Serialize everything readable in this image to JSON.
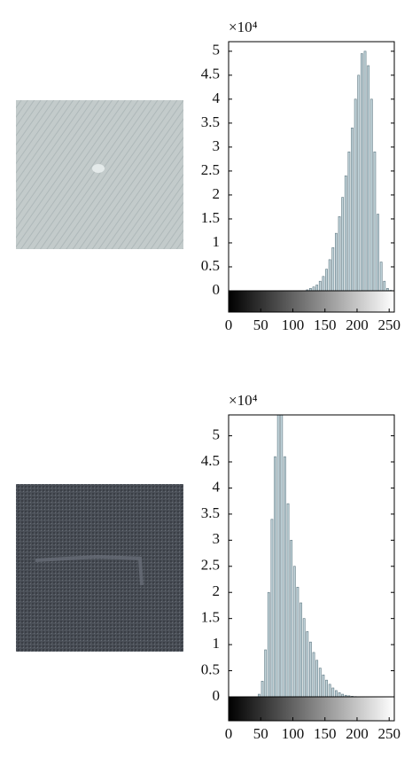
{
  "chart_data": [
    {
      "type": "histogram",
      "y_multiplier": "×10⁴",
      "color": "#c4d6dc",
      "edge_color": "#5d7680",
      "bins": [
        0,
        5,
        10,
        15,
        20,
        25,
        30,
        35,
        40,
        45,
        50,
        55,
        60,
        65,
        70,
        75,
        80,
        85,
        90,
        95,
        100,
        105,
        110,
        115,
        120,
        125,
        130,
        135,
        140,
        145,
        150,
        155,
        160,
        165,
        170,
        175,
        180,
        185,
        190,
        195,
        200,
        205,
        210,
        215,
        220,
        225,
        230,
        235,
        240,
        245,
        250,
        255
      ],
      "values": [
        0,
        0,
        0,
        0,
        0,
        0,
        0,
        0,
        0,
        0,
        0,
        0,
        0,
        0,
        0,
        0,
        0,
        0,
        0,
        0,
        0,
        0,
        0,
        0,
        0.02,
        0.05,
        0.08,
        0.12,
        0.2,
        0.3,
        0.45,
        0.65,
        0.9,
        1.2,
        1.55,
        1.95,
        2.4,
        2.9,
        3.4,
        4.0,
        4.5,
        4.95,
        5.0,
        4.7,
        4.0,
        2.9,
        1.6,
        0.6,
        0.2,
        0.05,
        0.01
      ],
      "xlim": [
        0,
        258
      ],
      "ylim": [
        0,
        5.2
      ],
      "xticks": [
        0,
        50,
        100,
        150,
        200,
        250
      ],
      "yticks": [
        0,
        0.5,
        1,
        1.5,
        2,
        2.5,
        3,
        3.5,
        4,
        4.5,
        5
      ]
    },
    {
      "type": "histogram",
      "y_multiplier": "×10⁴",
      "color": "#c4d6dc",
      "edge_color": "#5d7680",
      "bins": [
        0,
        5,
        10,
        15,
        20,
        25,
        30,
        35,
        40,
        45,
        50,
        55,
        60,
        65,
        70,
        75,
        80,
        85,
        90,
        95,
        100,
        105,
        110,
        115,
        120,
        125,
        130,
        135,
        140,
        145,
        150,
        155,
        160,
        165,
        170,
        175,
        180,
        185,
        190,
        195,
        200,
        205,
        210,
        215,
        220,
        225,
        230,
        235,
        240,
        245,
        250,
        255
      ],
      "values": [
        0,
        0,
        0,
        0,
        0,
        0,
        0,
        0,
        0,
        0.05,
        0.3,
        0.9,
        2.0,
        3.4,
        4.6,
        5.5,
        5.5,
        4.6,
        3.7,
        3.0,
        2.5,
        2.1,
        1.8,
        1.5,
        1.25,
        1.05,
        0.85,
        0.7,
        0.55,
        0.42,
        0.32,
        0.24,
        0.17,
        0.12,
        0.08,
        0.05,
        0.03,
        0.02,
        0.01,
        0.005,
        0,
        0,
        0,
        0,
        0,
        0,
        0,
        0,
        0,
        0,
        0
      ],
      "xlim": [
        0,
        258
      ],
      "ylim": [
        0,
        5.4
      ],
      "xticks": [
        0,
        50,
        100,
        150,
        200,
        250
      ],
      "yticks": [
        0,
        0.5,
        1,
        1.5,
        2,
        2.5,
        3,
        3.5,
        4,
        4.5,
        5
      ]
    }
  ]
}
